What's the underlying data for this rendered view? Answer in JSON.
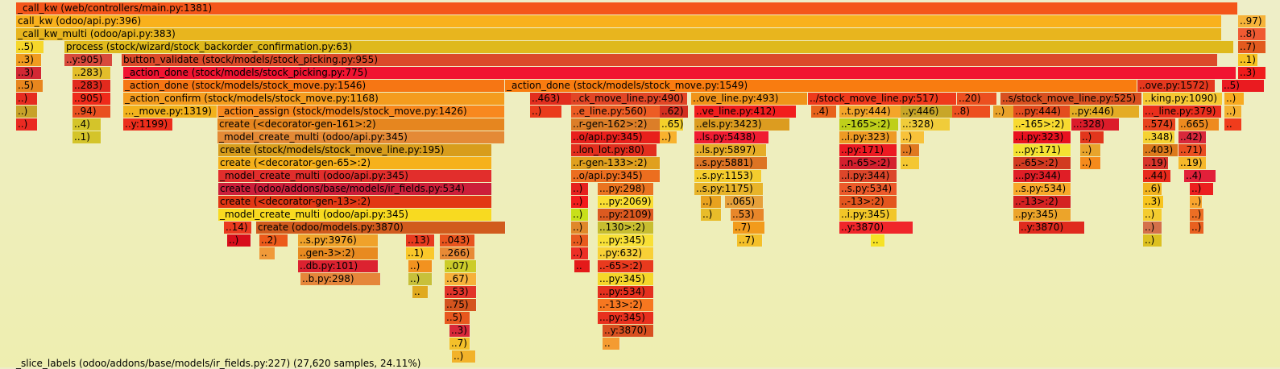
{
  "status_text": "_slice_labels (odoo/addons/base/models/ir_fields.py:227) (27,620 samples, 24.11%)",
  "frames": [
    [
      "flame-frame",
      0,
      3,
      1517,
      "_call_kw (web/controllers/main.py:1381)",
      "#f4561a"
    ],
    [
      "flame-frame",
      0,
      19,
      1497,
      "call_kw (odoo/api.py:396)",
      "#f9b11c"
    ],
    [
      "flame-frame",
      1517,
      19,
      35,
      "..97)",
      "#f6b33a"
    ],
    [
      "flame-frame",
      0,
      35,
      1497,
      "_call_kw_multi (odoo/api.py:383)",
      "#e8b51e"
    ],
    [
      "flame-frame",
      1517,
      35,
      35,
      "..8)",
      "#f05a32"
    ],
    [
      "flame-frame",
      0,
      51,
      35,
      "..5)",
      "#f6d72a"
    ],
    [
      "flame-frame",
      60,
      51,
      1452,
      "process (stock/wizard/stock_backorder_confirmation.py:63)",
      "#dfb91c"
    ],
    [
      "flame-frame",
      1517,
      51,
      35,
      "..7)",
      "#e25a1e"
    ],
    [
      "flame-frame",
      0,
      67,
      32,
      "..3)",
      "#f09b20"
    ],
    [
      "flame-frame",
      60,
      67,
      60,
      "..y:905)",
      "#d84a3c"
    ],
    [
      "flame-frame",
      131,
      67,
      1361,
      "button_validate (stock/models/stock_picking.py:955)",
      "#db4a2a"
    ],
    [
      "flame-frame",
      1517,
      67,
      25,
      "..1)",
      "#f7c221"
    ],
    [
      "flame-frame",
      0,
      83,
      32,
      "..3)",
      "#d22834"
    ],
    [
      "flame-frame",
      70,
      83,
      48,
      "..283)",
      "#e3bd2a"
    ],
    [
      "flame-frame",
      133,
      83,
      1382,
      "_action_done (stock/models/stock_picking.py:775)",
      "#f11431"
    ],
    [
      "flame-frame",
      1517,
      83,
      35,
      "..3)",
      "#f01c1c"
    ],
    [
      "flame-frame",
      0,
      99,
      34,
      "..5)",
      "#e8861e"
    ],
    [
      "flame-frame",
      70,
      99,
      48,
      "..283)",
      "#e22a1e"
    ],
    [
      "flame-frame",
      133,
      99,
      474,
      "_action_done (stock/models/stock_move.py:1546)",
      "#f67614"
    ],
    [
      "flame-frame",
      607,
      99,
      785,
      "_action_done (stock/models/stock_move.py:1549)",
      "#f97c10"
    ],
    [
      "flame-frame",
      1392,
      99,
      97,
      "..ove.py:1572)",
      "#e4381e"
    ],
    [
      "flame-frame",
      1497,
      99,
      53,
      "..5)",
      "#ea1b20"
    ],
    [
      "flame-frame",
      0,
      115,
      27,
      "..)",
      "#e62c20"
    ],
    [
      "flame-frame",
      70,
      115,
      48,
      "..905)",
      "#ef2a1a"
    ],
    [
      "flame-frame",
      133,
      115,
      474,
      "_action_confirm (stock/models/stock_move.py:1168)",
      "#f49c1e"
    ],
    [
      "flame-frame",
      638,
      115,
      60,
      "..463)",
      "#e22e1e"
    ],
    [
      "flame-frame",
      689,
      115,
      145,
      "..ck_move_line.py:490)",
      "#e24626"
    ],
    [
      "flame-frame",
      838,
      115,
      145,
      "..ove_line.py:493)",
      "#f0941a"
    ],
    [
      "flame-frame",
      983,
      115,
      185,
      "../stock_move_line.py:517)",
      "#ef3a1c"
    ],
    [
      "flame-frame",
      1168,
      115,
      50,
      "..20)",
      "#ec5020"
    ],
    [
      "flame-frame",
      1222,
      115,
      176,
      "..s/stock_move_line.py:525)",
      "#d85020"
    ],
    [
      "flame-frame",
      1399,
      115,
      99,
      "..king.py:1090)",
      "#f6c832"
    ],
    [
      "flame-frame",
      1500,
      115,
      25,
      "..)",
      "#f8aa20"
    ],
    [
      "flame-frame",
      0,
      131,
      27,
      "..)",
      "#c8a22a"
    ],
    [
      "flame-frame",
      70,
      131,
      48,
      "..94)",
      "#e95020"
    ],
    [
      "flame-frame",
      133,
      131,
      117,
      "..._move.py:1319)",
      "#f2b21c"
    ],
    [
      "flame-frame",
      250,
      131,
      357,
      "_action_assign (stock/models/stock_move.py:1426)",
      "#f8881e"
    ],
    [
      "flame-frame",
      638,
      131,
      40,
      "..)",
      "#ea3c1c"
    ],
    [
      "flame-frame",
      689,
      131,
      111,
      "..e_line.py:560)",
      "#ed5c24"
    ],
    [
      "flame-frame",
      799,
      131,
      36,
      "..62)",
      "#d23020"
    ],
    [
      "flame-frame",
      842,
      131,
      127,
      "..ve_line.py:412)",
      "#f21d1d"
    ],
    [
      "flame-frame",
      987,
      131,
      32,
      "..4)",
      "#e8621c"
    ],
    [
      "flame-frame",
      1022,
      131,
      92,
      "..t.py:444)",
      "#f4a52a"
    ],
    [
      "flame-frame",
      1098,
      131,
      70,
      "..y:446)",
      "#c8a628"
    ],
    [
      "flame-frame",
      1162,
      131,
      48,
      "..8)",
      "#ed4f1f"
    ],
    [
      "flame-frame",
      1213,
      131,
      32,
      "..)",
      "#e8a22a"
    ],
    [
      "flame-frame",
      1238,
      131,
      94,
      "...py:444)",
      "#e44c1e"
    ],
    [
      "flame-frame",
      1308,
      131,
      87,
      "..py:446)",
      "#e4ac24"
    ],
    [
      "flame-frame",
      1399,
      131,
      98,
      "..._line.py:379)",
      "#ea2e1c"
    ],
    [
      "flame-frame",
      1500,
      131,
      22,
      "..)",
      "#f4b030"
    ],
    [
      "flame-frame",
      0,
      147,
      27,
      "..)",
      "#ea2a22"
    ],
    [
      "flame-frame",
      70,
      147,
      36,
      "..4)",
      "#d4c42a"
    ],
    [
      "flame-frame",
      133,
      147,
      62,
      "..y:1199)",
      "#ec2e1c"
    ],
    [
      "flame-frame",
      250,
      147,
      357,
      "create (<decorator-gen-161>:2)",
      "#e6861f"
    ],
    [
      "flame-frame",
      689,
      147,
      111,
      "..r-gen-162>:2)",
      "#dc7e28"
    ],
    [
      "flame-frame",
      799,
      147,
      30,
      "..65)",
      "#f4d02a"
    ],
    [
      "flame-frame",
      842,
      147,
      119,
      "..els.py:3423)",
      "#dc9c20"
    ],
    [
      "flame-frame",
      1022,
      147,
      74,
      "..-165>:2)",
      "#bfcf1a"
    ],
    [
      "flame-frame",
      1098,
      147,
      62,
      "..:328)",
      "#f0cc3a"
    ],
    [
      "flame-frame",
      1238,
      147,
      72,
      "..-165>:2)",
      "#f8da30"
    ],
    [
      "flame-frame",
      1310,
      147,
      60,
      "..:328)",
      "#dc1c2a"
    ],
    [
      "flame-frame",
      1399,
      147,
      41,
      "..574)",
      "#e8441e"
    ],
    [
      "flame-frame",
      1443,
      147,
      51,
      "..665)",
      "#ee8a1f"
    ],
    [
      "flame-frame",
      1500,
      147,
      22,
      "..",
      "#f03c1c"
    ],
    [
      "flame-frame",
      70,
      163,
      36,
      "..1)",
      "#d4c42a"
    ],
    [
      "flame-frame",
      250,
      163,
      357,
      "_model_create_multi (odoo/api.py:345)",
      "#e48a36"
    ],
    [
      "flame-frame",
      689,
      163,
      111,
      "..o/api.py:345)",
      "#e8201c"
    ],
    [
      "flame-frame",
      799,
      163,
      22,
      "..)",
      "#f8b22e"
    ],
    [
      "flame-frame",
      842,
      163,
      93,
      "..ls.py:5438)",
      "#f01c32"
    ],
    [
      "flame-frame",
      1022,
      163,
      72,
      "..i.py:323)",
      "#ee9a24"
    ],
    [
      "flame-frame",
      1098,
      163,
      30,
      "..)",
      "#f8c23a"
    ],
    [
      "flame-frame",
      1238,
      163,
      72,
      "..i.py:323)",
      "#e8121f"
    ],
    [
      "flame-frame",
      1321,
      163,
      30,
      "..)",
      "#e2361c"
    ],
    [
      "flame-frame",
      1399,
      163,
      40,
      "..348)",
      "#f5d232"
    ],
    [
      "flame-frame",
      1443,
      163,
      35,
      "..42)",
      "#d8283b"
    ],
    [
      "flame-frame",
      251,
      179,
      340,
      "create (stock/models/stock_move_line.py:195)",
      "#d89d1c"
    ],
    [
      "flame-frame",
      689,
      179,
      107,
      "..lon_lot.py:80)",
      "#e22e1e"
    ],
    [
      "flame-frame",
      842,
      179,
      90,
      "..ls.py:5897)",
      "#e6ac27"
    ],
    [
      "flame-frame",
      1022,
      179,
      72,
      "..py:171)",
      "#ec1a22"
    ],
    [
      "flame-frame",
      1098,
      179,
      24,
      "..)",
      "#e07820"
    ],
    [
      "flame-frame",
      1238,
      179,
      72,
      "...py:171)",
      "#f4e232"
    ],
    [
      "flame-frame",
      1321,
      179,
      26,
      "..)",
      "#e8a42c"
    ],
    [
      "flame-frame",
      1399,
      179,
      44,
      "..403)",
      "#dc7a1c"
    ],
    [
      "flame-frame",
      1443,
      179,
      35,
      "..71)",
      "#e94e20"
    ],
    [
      "flame-frame",
      251,
      195,
      340,
      "create (<decorator-gen-65>:2)",
      "#f6b11b"
    ],
    [
      "flame-frame",
      689,
      195,
      111,
      "..r-gen-133>:2)",
      "#e0a01e"
    ],
    [
      "flame-frame",
      842,
      195,
      91,
      "..s.py:5881)",
      "#dd7424"
    ],
    [
      "flame-frame",
      1022,
      195,
      72,
      "..n-65>:2)",
      "#d4202e"
    ],
    [
      "flame-frame",
      1098,
      195,
      24,
      "..",
      "#f4c732"
    ],
    [
      "flame-frame",
      1238,
      195,
      72,
      "..-65>:2)",
      "#d23a20"
    ],
    [
      "flame-frame",
      1321,
      195,
      26,
      "..)",
      "#f58a1c"
    ],
    [
      "flame-frame",
      1399,
      195,
      32,
      "..19)",
      "#d8342a"
    ],
    [
      "flame-frame",
      1443,
      195,
      35,
      "..19)",
      "#f6b82a"
    ],
    [
      "flame-frame",
      251,
      211,
      340,
      "_model_create_multi (odoo/api.py:345)",
      "#e22e2c"
    ],
    [
      "flame-frame",
      689,
      211,
      111,
      "..o/api.py:345)",
      "#ec6e1f"
    ],
    [
      "flame-frame",
      842,
      211,
      84,
      "..s.py:1153)",
      "#f4cc2e"
    ],
    [
      "flame-frame",
      1022,
      211,
      72,
      "..i.py:344)",
      "#dc462a"
    ],
    [
      "flame-frame",
      1238,
      211,
      72,
      "...py:344)",
      "#e01e26"
    ],
    [
      "flame-frame",
      1399,
      211,
      35,
      "..44)",
      "#e82a1c"
    ],
    [
      "flame-frame",
      1450,
      211,
      40,
      "..4)",
      "#e2203a"
    ],
    [
      "flame-frame",
      251,
      227,
      340,
      "create (odoo/addons/base/models/ir_fields.py:534)",
      "#cc1f3a"
    ],
    [
      "flame-frame",
      689,
      227,
      22,
      "..)",
      "#e6221f"
    ],
    [
      "flame-frame",
      722,
      227,
      70,
      "...py:298)",
      "#ea7420"
    ],
    [
      "flame-frame",
      842,
      227,
      86,
      "..s.py:1175)",
      "#e8b42a"
    ],
    [
      "flame-frame",
      1022,
      227,
      72,
      "..s.py:534)",
      "#ec5a2a"
    ],
    [
      "flame-frame",
      1238,
      227,
      72,
      "..s.py:534)",
      "#f8a82a"
    ],
    [
      "flame-frame",
      1399,
      227,
      24,
      "..6)",
      "#f2b31f"
    ],
    [
      "flame-frame",
      1457,
      227,
      30,
      "..)",
      "#ec1f1f"
    ],
    [
      "flame-frame",
      251,
      243,
      340,
      "create (<decorator-gen-13>:2)",
      "#e23814"
    ],
    [
      "flame-frame",
      689,
      243,
      22,
      "..)",
      "#f21c1c"
    ],
    [
      "flame-frame",
      722,
      243,
      70,
      "...py:2069)",
      "#fadd32"
    ],
    [
      "flame-frame",
      850,
      243,
      26,
      "..)",
      "#e8a21f"
    ],
    [
      "flame-frame",
      880,
      243,
      48,
      "..065)",
      "#e6a03a"
    ],
    [
      "flame-frame",
      1022,
      243,
      72,
      "..-13>:2)",
      "#e3561e"
    ],
    [
      "flame-frame",
      1238,
      243,
      72,
      "..-13>:2)",
      "#d42222"
    ],
    [
      "flame-frame",
      1399,
      243,
      26,
      "..3)",
      "#f7c41d"
    ],
    [
      "flame-frame",
      1457,
      243,
      16,
      "..)",
      "#f9a42e"
    ],
    [
      "flame-frame",
      251,
      259,
      340,
      "_model_create_multi (odoo/api.py:345)",
      "#f8da20"
    ],
    [
      "flame-frame",
      689,
      259,
      22,
      "..)",
      "#c8e01a"
    ],
    [
      "flame-frame",
      722,
      259,
      70,
      "...py:2109)",
      "#dc5a20"
    ],
    [
      "flame-frame",
      850,
      259,
      26,
      "..)",
      "#e8bc2a"
    ],
    [
      "flame-frame",
      887,
      259,
      42,
      "..53)",
      "#e8862a"
    ],
    [
      "flame-frame",
      1022,
      259,
      72,
      "..i.py:345)",
      "#f2c628"
    ],
    [
      "flame-frame",
      1238,
      259,
      72,
      "..py:345)",
      "#eca42a"
    ],
    [
      "flame-frame",
      1399,
      259,
      24,
      "..)",
      "#f4cc2f"
    ],
    [
      "flame-frame",
      1457,
      259,
      18,
      "..)",
      "#ec6e24"
    ],
    [
      "flame-frame",
      258,
      275,
      35,
      "..14)",
      "#ea3a1f"
    ],
    [
      "flame-frame",
      298,
      275,
      310,
      "create (odoo/models.py:3870)",
      "#d15b1d"
    ],
    [
      "flame-frame",
      689,
      275,
      22,
      "..)",
      "#e0882a"
    ],
    [
      "flame-frame",
      722,
      275,
      70,
      "..130>:2)",
      "#c8be30"
    ],
    [
      "flame-frame",
      890,
      275,
      40,
      "..7)",
      "#f29b1c"
    ],
    [
      "flame-frame",
      1022,
      275,
      92,
      "..y:3870)",
      "#f0262a"
    ],
    [
      "flame-frame",
      1245,
      275,
      82,
      "..y:3870)",
      "#e02a1e"
    ],
    [
      "flame-frame",
      1399,
      275,
      24,
      "..)",
      "#d4704a"
    ],
    [
      "flame-frame",
      1457,
      275,
      18,
      "..)",
      "#e86020"
    ],
    [
      "flame-frame",
      262,
      291,
      30,
      "..)",
      "#d80e1b"
    ],
    [
      "flame-frame",
      302,
      291,
      36,
      "..2)",
      "#ec5a1a"
    ],
    [
      "flame-frame",
      350,
      291,
      100,
      "..s.py:3976)",
      "#f0a22a"
    ],
    [
      "flame-frame",
      484,
      291,
      36,
      "..13)",
      "#e83a1e"
    ],
    [
      "flame-frame",
      526,
      291,
      44,
      "..043)",
      "#e8541e"
    ],
    [
      "flame-frame",
      689,
      291,
      22,
      "..)",
      "#e85a1e"
    ],
    [
      "flame-frame",
      722,
      291,
      70,
      "...py:345)",
      "#f8e036"
    ],
    [
      "flame-frame",
      895,
      291,
      32,
      "..7)",
      "#f4c02a"
    ],
    [
      "flame-frame",
      1061,
      291,
      18,
      "..",
      "#f6e225"
    ],
    [
      "flame-frame",
      1399,
      291,
      24,
      "..)",
      "#dcc020"
    ],
    [
      "flame-frame",
      302,
      307,
      20,
      "..",
      "#f09a3a"
    ],
    [
      "flame-frame",
      350,
      307,
      100,
      "..gen-3>:2)",
      "#e88a20"
    ],
    [
      "flame-frame",
      484,
      307,
      36,
      "..1)",
      "#fac82a"
    ],
    [
      "flame-frame",
      526,
      307,
      44,
      "..266)",
      "#e88a36"
    ],
    [
      "flame-frame",
      689,
      307,
      22,
      "..)",
      "#ec3026"
    ],
    [
      "flame-frame",
      722,
      307,
      70,
      "..py:632)",
      "#f8d036"
    ],
    [
      "flame-frame",
      350,
      323,
      100,
      "..db.py:101)",
      "#dc2230"
    ],
    [
      "flame-frame",
      487,
      323,
      30,
      "..)",
      "#f2921f"
    ],
    [
      "flame-frame",
      532,
      323,
      40,
      "..07)",
      "#cccc2a"
    ],
    [
      "flame-frame",
      693,
      323,
      20,
      "..",
      "#e41a1a"
    ],
    [
      "flame-frame",
      722,
      323,
      70,
      "..-65>:2)",
      "#e83a1e"
    ],
    [
      "flame-frame",
      353,
      339,
      100,
      "..b.py:298)",
      "#e5863a"
    ],
    [
      "flame-frame",
      487,
      339,
      30,
      "..)",
      "#c8c03a"
    ],
    [
      "flame-frame",
      532,
      339,
      40,
      "..67)",
      "#f6b13a"
    ],
    [
      "flame-frame",
      722,
      339,
      70,
      "...py:345)",
      "#f5d62a"
    ],
    [
      "flame-frame",
      492,
      355,
      20,
      "..",
      "#e0aa20"
    ],
    [
      "flame-frame",
      532,
      355,
      40,
      "..53)",
      "#e2342a"
    ],
    [
      "flame-frame",
      722,
      355,
      70,
      "...py:534)",
      "#e4301e"
    ],
    [
      "flame-frame",
      532,
      371,
      40,
      "..75)",
      "#d4541e"
    ],
    [
      "flame-frame",
      722,
      371,
      70,
      "..-13>:2)",
      "#f67720"
    ],
    [
      "flame-frame",
      532,
      387,
      32,
      "..5)",
      "#e8581e"
    ],
    [
      "flame-frame",
      722,
      387,
      70,
      "...py:345)",
      "#e8301e"
    ],
    [
      "flame-frame",
      538,
      403,
      26,
      "..3)",
      "#d8283a"
    ],
    [
      "flame-frame",
      728,
      403,
      64,
      "..y:3870)",
      "#d85020"
    ],
    [
      "flame-frame",
      538,
      419,
      26,
      "..7)",
      "#f4c02a"
    ],
    [
      "flame-frame",
      728,
      419,
      22,
      "..",
      "#f49b32"
    ],
    [
      "flame-frame",
      541,
      435,
      30,
      "..)",
      "#f2b22a"
    ]
  ]
}
